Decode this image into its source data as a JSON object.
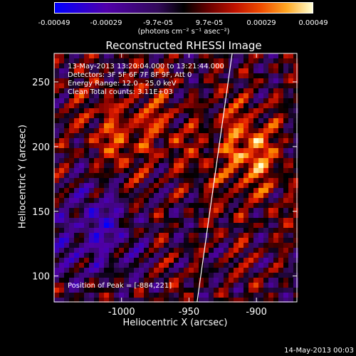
{
  "colorbar": {
    "ticks": [
      "-0.00049",
      "-0.00029",
      "-9.7e-05",
      "9.7e-05",
      "0.00029",
      "0.00049"
    ],
    "units": "(photons cm⁻² s⁻¹ asec⁻²)"
  },
  "title": "Reconstructed RHESSI Image",
  "info": {
    "time": "13-May-2013 13:20:04.000 to 13:21:44.000",
    "detectors": "Detectors: 3F 5F 6F 7F 8F 9F, Att 0",
    "energy": "Energy Range: 12.0 - 25.0 keV",
    "clean": "Clean    Total counts: 3.11E+03"
  },
  "peak_label": "Position of Peak = [-884,221]",
  "footer_date": "14-May-2013 00:03",
  "chart_data": {
    "type": "heatmap",
    "title": "Reconstructed RHESSI Image",
    "xlabel": "Heliocentric X (arcsec)",
    "ylabel": "Heliocentric Y (arcsec)",
    "xlim": [
      -1050,
      -870
    ],
    "ylim": [
      80,
      272
    ],
    "xticks": [
      -1000,
      -950,
      -900
    ],
    "yticks": [
      100,
      150,
      200,
      250
    ],
    "xtick_labels": [
      "-1000",
      "-950",
      "-900"
    ],
    "ytick_labels": [
      "100",
      "150",
      "200",
      "250"
    ],
    "color_range": [
      -0.00049,
      0.00049
    ],
    "peak": [
      -884,
      221
    ]
  }
}
